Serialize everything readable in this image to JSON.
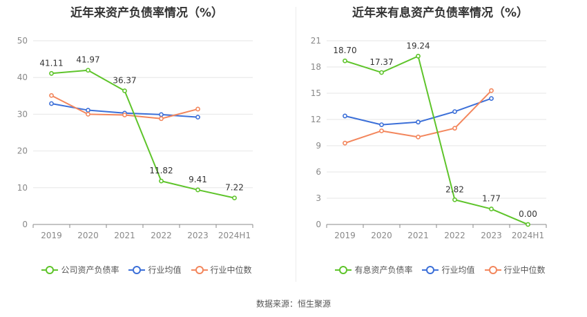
{
  "charts": [
    {
      "title": "近年来资产负债率情况（%）"
    },
    {
      "title": "近年来有息资产负债率情况（%）"
    }
  ],
  "chart_data": [
    {
      "type": "line",
      "title": "近年来资产负债率情况（%）",
      "categories": [
        "2019",
        "2020",
        "2021",
        "2022",
        "2023",
        "2024H1"
      ],
      "ylim": [
        0,
        50
      ],
      "yticks": [
        0,
        10,
        20,
        30,
        40,
        50
      ],
      "grid": true,
      "legend_position": "bottom",
      "series": [
        {
          "name": "公司资产负债率",
          "color": "#5ec42a",
          "values": [
            41.11,
            41.97,
            36.37,
            11.82,
            9.41,
            7.22
          ],
          "labels": [
            "41.11",
            "41.97",
            "36.37",
            "11.82",
            "9.41",
            "7.22"
          ]
        },
        {
          "name": "行业均值",
          "color": "#3b6fd8",
          "values": [
            32.9,
            31.1,
            30.3,
            29.9,
            29.2,
            null
          ]
        },
        {
          "name": "行业中位数",
          "color": "#f3865c",
          "values": [
            35.1,
            30.0,
            29.8,
            28.8,
            31.4,
            null
          ]
        }
      ]
    },
    {
      "type": "line",
      "title": "近年来有息资产负债率情况（%）",
      "categories": [
        "2019",
        "2020",
        "2021",
        "2022",
        "2023",
        "2024H1"
      ],
      "ylim": [
        0,
        21
      ],
      "yticks": [
        0,
        3,
        6,
        9,
        12,
        15,
        18,
        21
      ],
      "grid": true,
      "legend_position": "bottom",
      "series": [
        {
          "name": "有息资产负债率",
          "color": "#5ec42a",
          "values": [
            18.7,
            17.37,
            19.24,
            2.82,
            1.77,
            0.0
          ],
          "labels": [
            "18.70",
            "17.37",
            "19.24",
            "2.82",
            "1.77",
            "0.00"
          ]
        },
        {
          "name": "行业均值",
          "color": "#3b6fd8",
          "values": [
            12.4,
            11.4,
            11.7,
            12.9,
            14.4,
            null
          ]
        },
        {
          "name": "行业中位数",
          "color": "#f3865c",
          "values": [
            9.3,
            10.7,
            10.0,
            11.0,
            15.3,
            null
          ]
        }
      ]
    }
  ],
  "footer": {
    "source": "数据来源：恒生聚源"
  }
}
